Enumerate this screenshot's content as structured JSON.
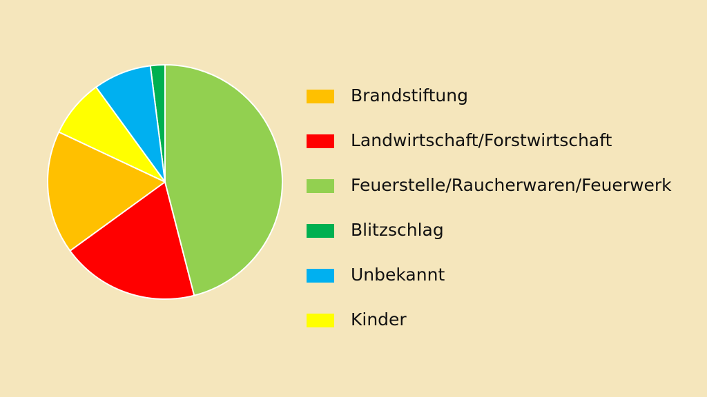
{
  "chart_data": {
    "type": "pie",
    "categories": [
      "Brandstiftung",
      "Landwirtschaft/Forstwirtschaft",
      "Feuerstelle/Raucherwaren/Feuerwerk",
      "Blitzschlag",
      "Unbekannt",
      "Kinder"
    ],
    "values": [
      17,
      19,
      46,
      2,
      8,
      8
    ],
    "colors": [
      "#ffc000",
      "#ff0000",
      "#92d050",
      "#00b050",
      "#00b0f0",
      "#ffff00"
    ],
    "legend": "right"
  }
}
